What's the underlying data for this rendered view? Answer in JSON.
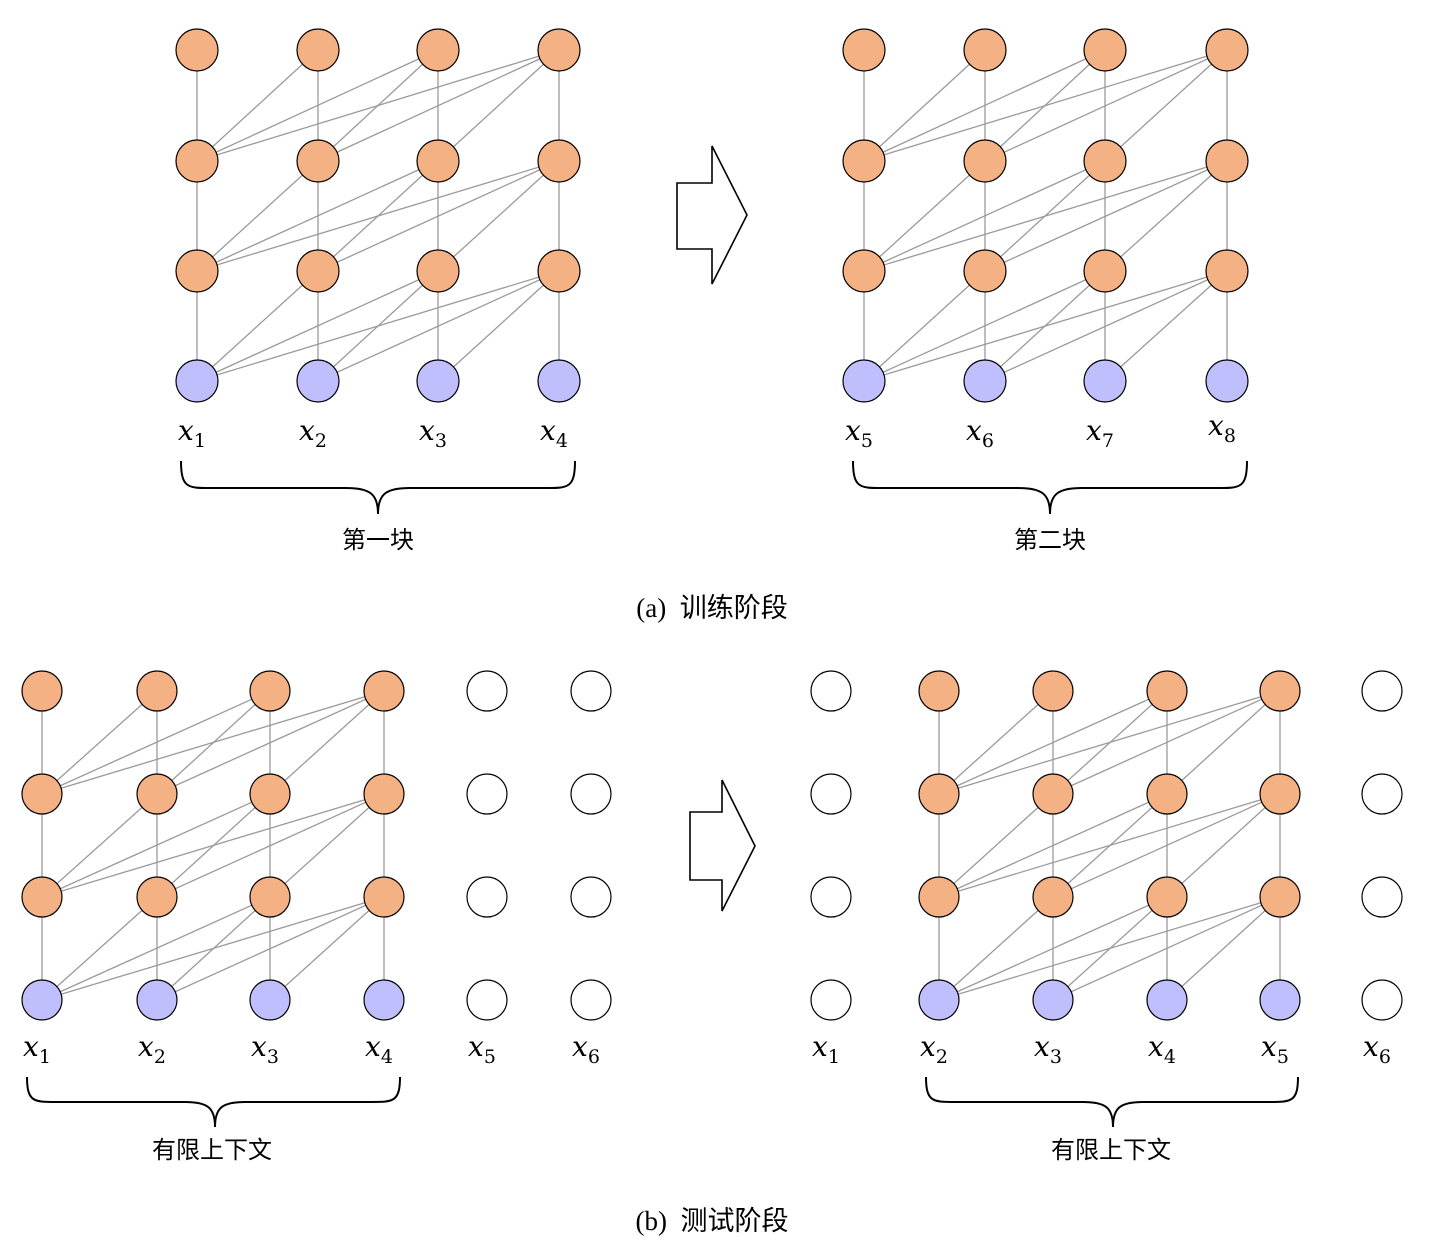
{
  "colors": {
    "hidden_node": "#f4b183",
    "input_node": "#c0bffd",
    "empty_node": "#ffffff",
    "edge": "#9a9a9a"
  },
  "panel_a": {
    "caption": "(a)  训练阶段",
    "left_group": {
      "label": "第一块",
      "inputs": [
        {
          "var": "x",
          "sub": "1"
        },
        {
          "var": "x",
          "sub": "2"
        },
        {
          "var": "x",
          "sub": "3"
        },
        {
          "var": "x",
          "sub": "4"
        }
      ]
    },
    "right_group": {
      "label": "第二块",
      "inputs": [
        {
          "var": "x",
          "sub": "5"
        },
        {
          "var": "x",
          "sub": "6"
        },
        {
          "var": "x",
          "sub": "7"
        },
        {
          "var": "x",
          "sub": "8"
        }
      ]
    }
  },
  "panel_b": {
    "caption": "(b)  测试阶段",
    "left_group": {
      "label": "有限上下文",
      "inputs": [
        {
          "var": "x",
          "sub": "1"
        },
        {
          "var": "x",
          "sub": "2"
        },
        {
          "var": "x",
          "sub": "3"
        },
        {
          "var": "x",
          "sub": "4"
        },
        {
          "var": "x",
          "sub": "5"
        },
        {
          "var": "x",
          "sub": "6"
        }
      ]
    },
    "right_group": {
      "label": "有限上下文",
      "inputs": [
        {
          "var": "x",
          "sub": "1"
        },
        {
          "var": "x",
          "sub": "2"
        },
        {
          "var": "x",
          "sub": "3"
        },
        {
          "var": "x",
          "sub": "4"
        },
        {
          "var": "x",
          "sub": "5"
        },
        {
          "var": "x",
          "sub": "6"
        }
      ]
    }
  }
}
